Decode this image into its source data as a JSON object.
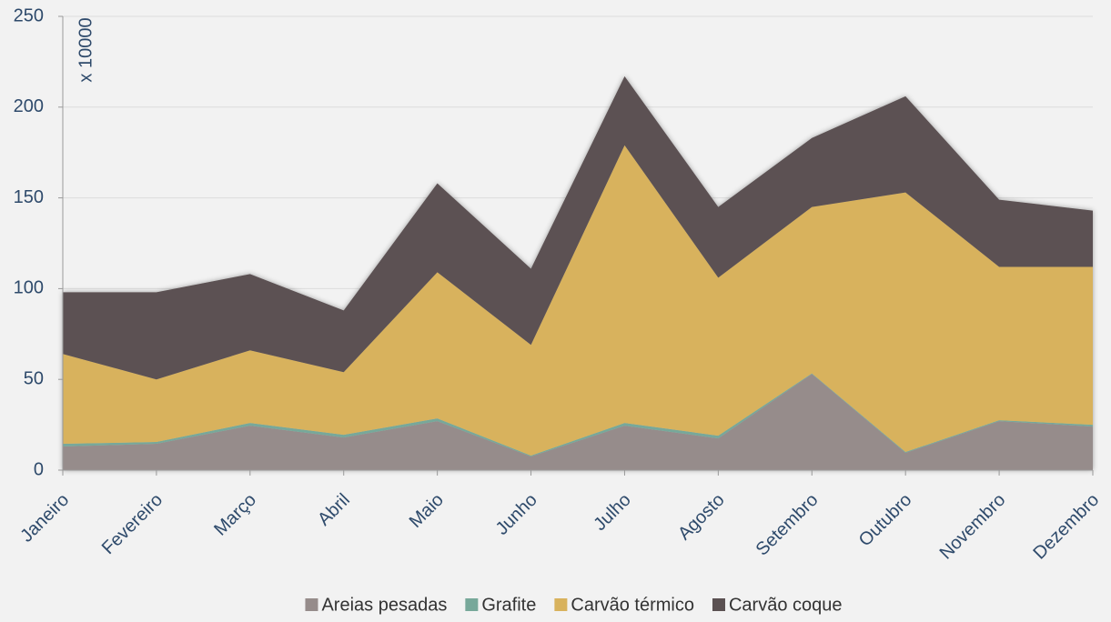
{
  "chart_data": {
    "type": "stacked_area",
    "annotation": "x 10000",
    "categories": [
      "Janeiro",
      "Fevereiro",
      "Março",
      "Abril",
      "Maio",
      "Junho",
      "Julho",
      "Agosto",
      "Setembro",
      "Outubro",
      "Novembro",
      "Dezembro"
    ],
    "series": [
      {
        "name": "Areias pesadas",
        "color": "#968c8b",
        "values": [
          13,
          14.5,
          24.5,
          18,
          27,
          7.5,
          24.5,
          17.5,
          53,
          9.5,
          27,
          24
        ]
      },
      {
        "name": "Grafite",
        "color": "#77a89a",
        "values": [
          1.5,
          1,
          1.5,
          1.5,
          1.5,
          0.5,
          1.5,
          1.5,
          0.3,
          0.5,
          0.5,
          1
        ]
      },
      {
        "name": "Carvão térmico",
        "color": "#d8b25d",
        "values": [
          49.5,
          34.5,
          40,
          34.5,
          80.5,
          61,
          153,
          87,
          91.7,
          143,
          84.5,
          87
        ]
      },
      {
        "name": "Carvão coque",
        "color": "#5b5152",
        "values": [
          34,
          48,
          42,
          34,
          49,
          42,
          38,
          39,
          38,
          53,
          37,
          31
        ]
      }
    ],
    "ylim": [
      0,
      250
    ],
    "yticks": [
      0,
      50,
      100,
      150,
      200,
      250
    ],
    "grid": true,
    "legend": "bottom"
  }
}
